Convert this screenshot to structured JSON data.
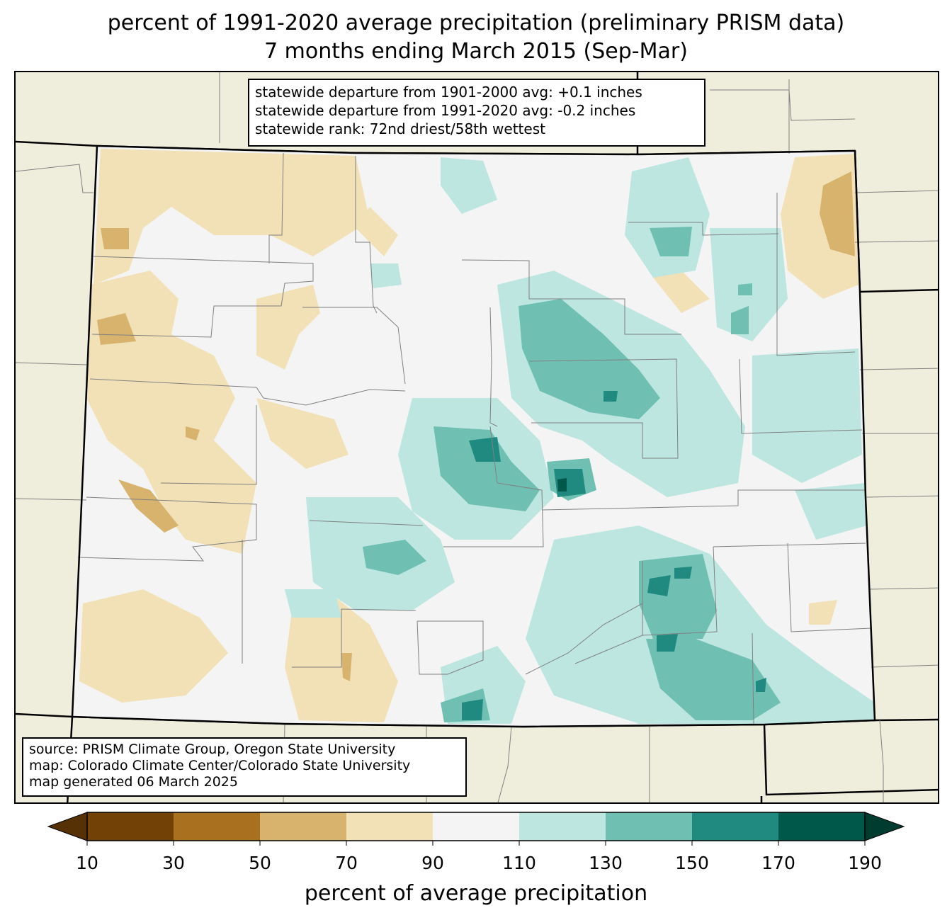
{
  "title": {
    "line1": "percent of 1991-2020 average precipitation (preliminary PRISM data)",
    "line2": "7 months ending March 2015 (Sep-Mar)"
  },
  "stats_box": {
    "line1": "statewide departure from 1901-2000 avg: +0.1 inches",
    "line2": "statewide departure from 1991-2020 avg: -0.2 inches",
    "line3": "statewide rank: 72nd driest/58th wettest"
  },
  "source_box": {
    "line1": "source: PRISM Climate Group, Oregon State University",
    "line2": "map: Colorado Climate Center/Colorado State University",
    "line3": "map generated 06 March 2025"
  },
  "colorbar": {
    "label": "percent of average precipitation",
    "ticks": [
      "10",
      "30",
      "50",
      "70",
      "90",
      "110",
      "130",
      "150",
      "170",
      "190"
    ],
    "colors": [
      "#724106",
      "#a9701f",
      "#d8b36d",
      "#f2e1b6",
      "#f3f4f3",
      "#bde6e1",
      "#6fc0b2",
      "#208a80",
      "#00584a"
    ],
    "under_color": "#563106",
    "over_color": "#003c30"
  },
  "map": {
    "background_color": "#efeddb",
    "state_fill": "#f3f4f3",
    "county_line_color": "#808080",
    "state_line_color": "#000000"
  }
}
